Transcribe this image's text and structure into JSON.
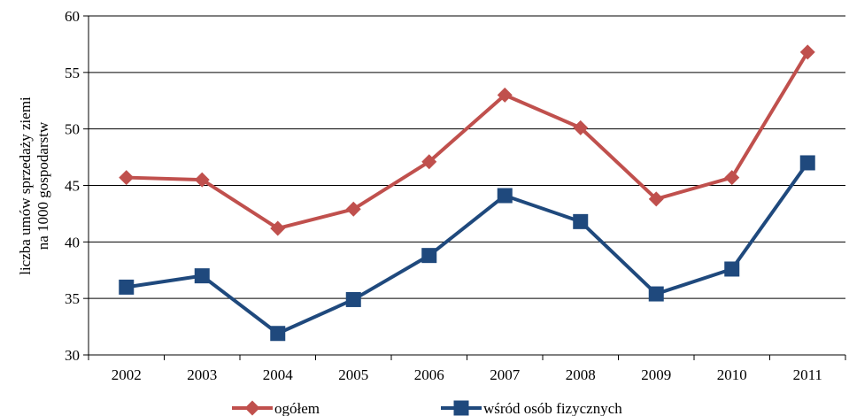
{
  "chart_data": {
    "type": "line",
    "title": "",
    "xlabel": "",
    "ylabel": [
      "liczba umów sprzedaży ziemi",
      "na 1000 gospodarstw"
    ],
    "categories": [
      "2002",
      "2003",
      "2004",
      "2005",
      "2006",
      "2007",
      "2008",
      "2009",
      "2010",
      "2011"
    ],
    "ylim": [
      30,
      60
    ],
    "yticks": [
      30,
      35,
      40,
      45,
      50,
      55,
      60
    ],
    "grid": true,
    "legend_position": "bottom",
    "series": [
      {
        "name": "ogółem",
        "marker": "diamond",
        "color": "#C0504D",
        "values": [
          45.7,
          45.5,
          41.2,
          42.9,
          47.1,
          53.0,
          50.1,
          43.8,
          45.7,
          56.8
        ]
      },
      {
        "name": "wśród osób fizycznych",
        "marker": "square",
        "color": "#1F497D",
        "values": [
          36.0,
          37.0,
          31.9,
          34.9,
          38.8,
          44.1,
          41.8,
          35.4,
          37.6,
          47.0
        ]
      }
    ]
  }
}
